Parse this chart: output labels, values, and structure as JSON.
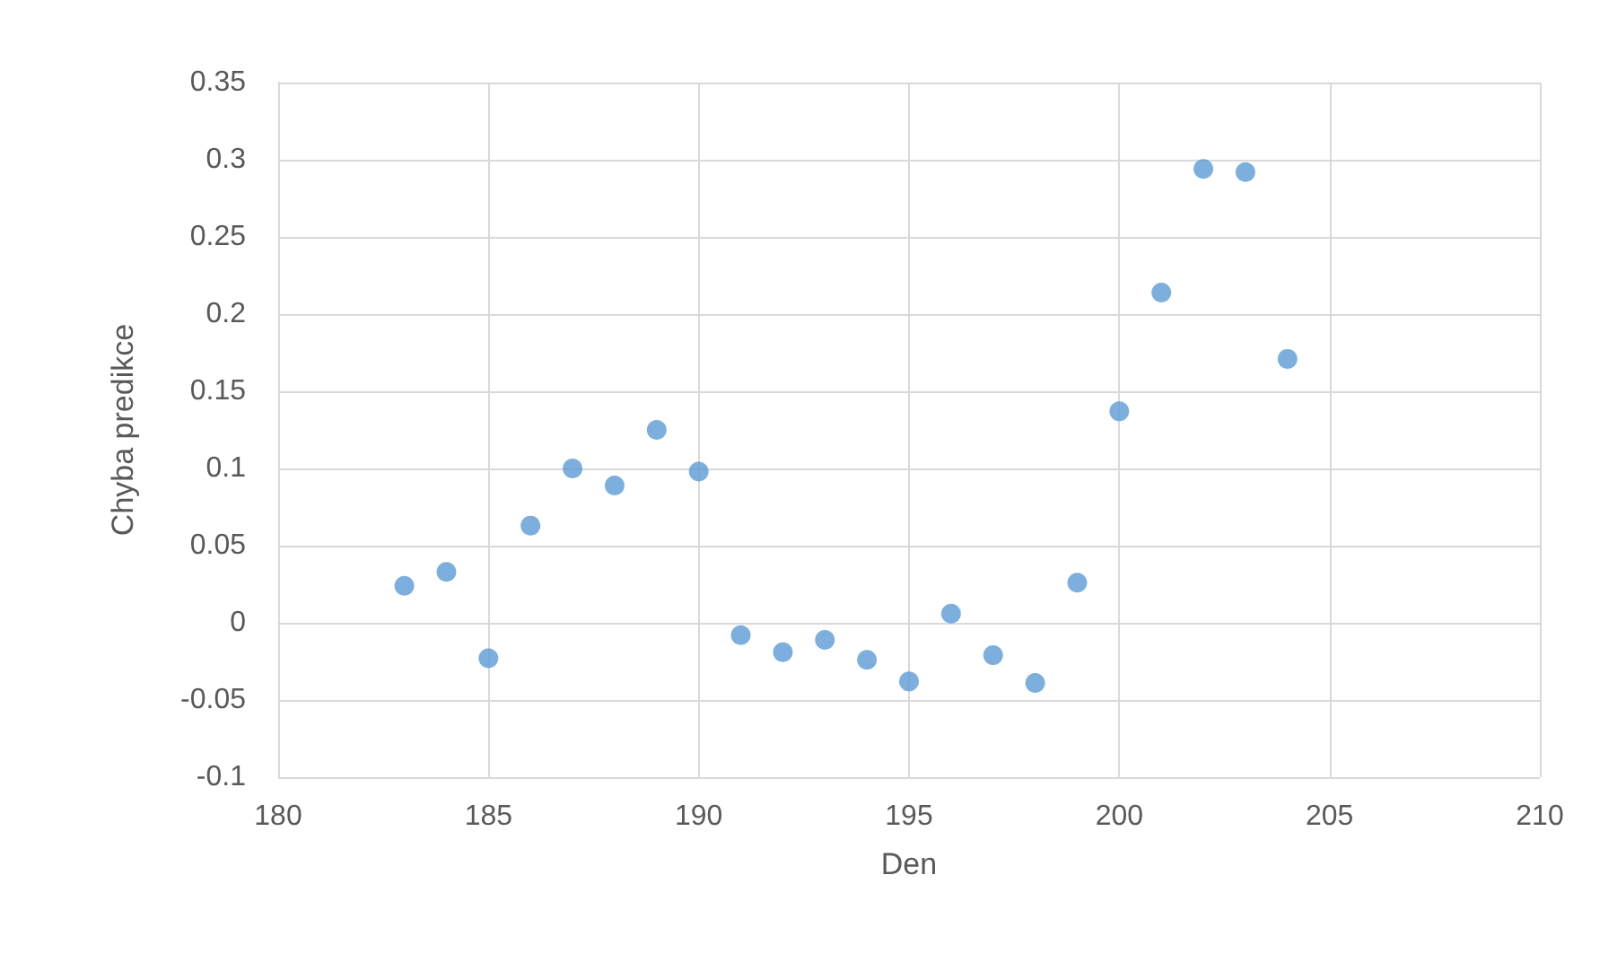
{
  "chart_data": {
    "type": "scatter",
    "xlabel": "Den",
    "ylabel": "Chyba predikce",
    "x": [
      183,
      184,
      185,
      186,
      187,
      188,
      189,
      190,
      191,
      192,
      193,
      194,
      195,
      196,
      197,
      198,
      199,
      200,
      201,
      202,
      203,
      204
    ],
    "values": [
      0.024,
      0.033,
      -0.023,
      0.063,
      0.1,
      0.089,
      0.125,
      0.098,
      -0.008,
      -0.019,
      -0.011,
      -0.024,
      -0.038,
      0.006,
      -0.021,
      -0.039,
      0.026,
      0.137,
      0.214,
      0.294,
      0.292,
      0.171
    ],
    "color": "#5b9bd5",
    "marker": "circle",
    "grid": true,
    "xlim": [
      180,
      210
    ],
    "xticks": [
      180,
      185,
      190,
      195,
      200,
      205,
      210
    ],
    "ylim": [
      -0.1,
      0.35
    ],
    "yticks": [
      -0.1,
      -0.05,
      0,
      0.05,
      0.1,
      0.15,
      0.2,
      0.25,
      0.3,
      0.35
    ]
  }
}
